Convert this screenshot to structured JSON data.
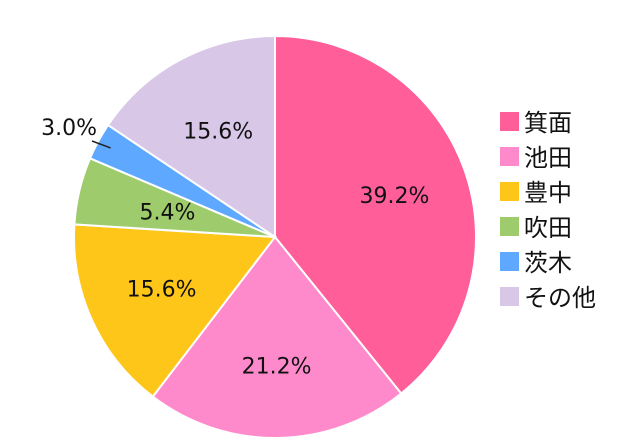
{
  "chart_data": {
    "type": "pie",
    "categories": [
      "箕面",
      "池田",
      "豊中",
      "吹田",
      "茨木",
      "その他"
    ],
    "values": [
      39.2,
      21.2,
      15.6,
      5.4,
      3.0,
      15.6
    ],
    "value_labels": [
      "39.2%",
      "21.2%",
      "15.6%",
      "5.4%",
      "3.0%",
      "15.6%"
    ],
    "colors": [
      "#FF5E99",
      "#FF8ACB",
      "#FFC61A",
      "#9ECB6B",
      "#5EA9FF",
      "#D9C7E8"
    ],
    "start_angle": "12 o'clock",
    "direction": "clockwise",
    "legend_position": "right"
  }
}
